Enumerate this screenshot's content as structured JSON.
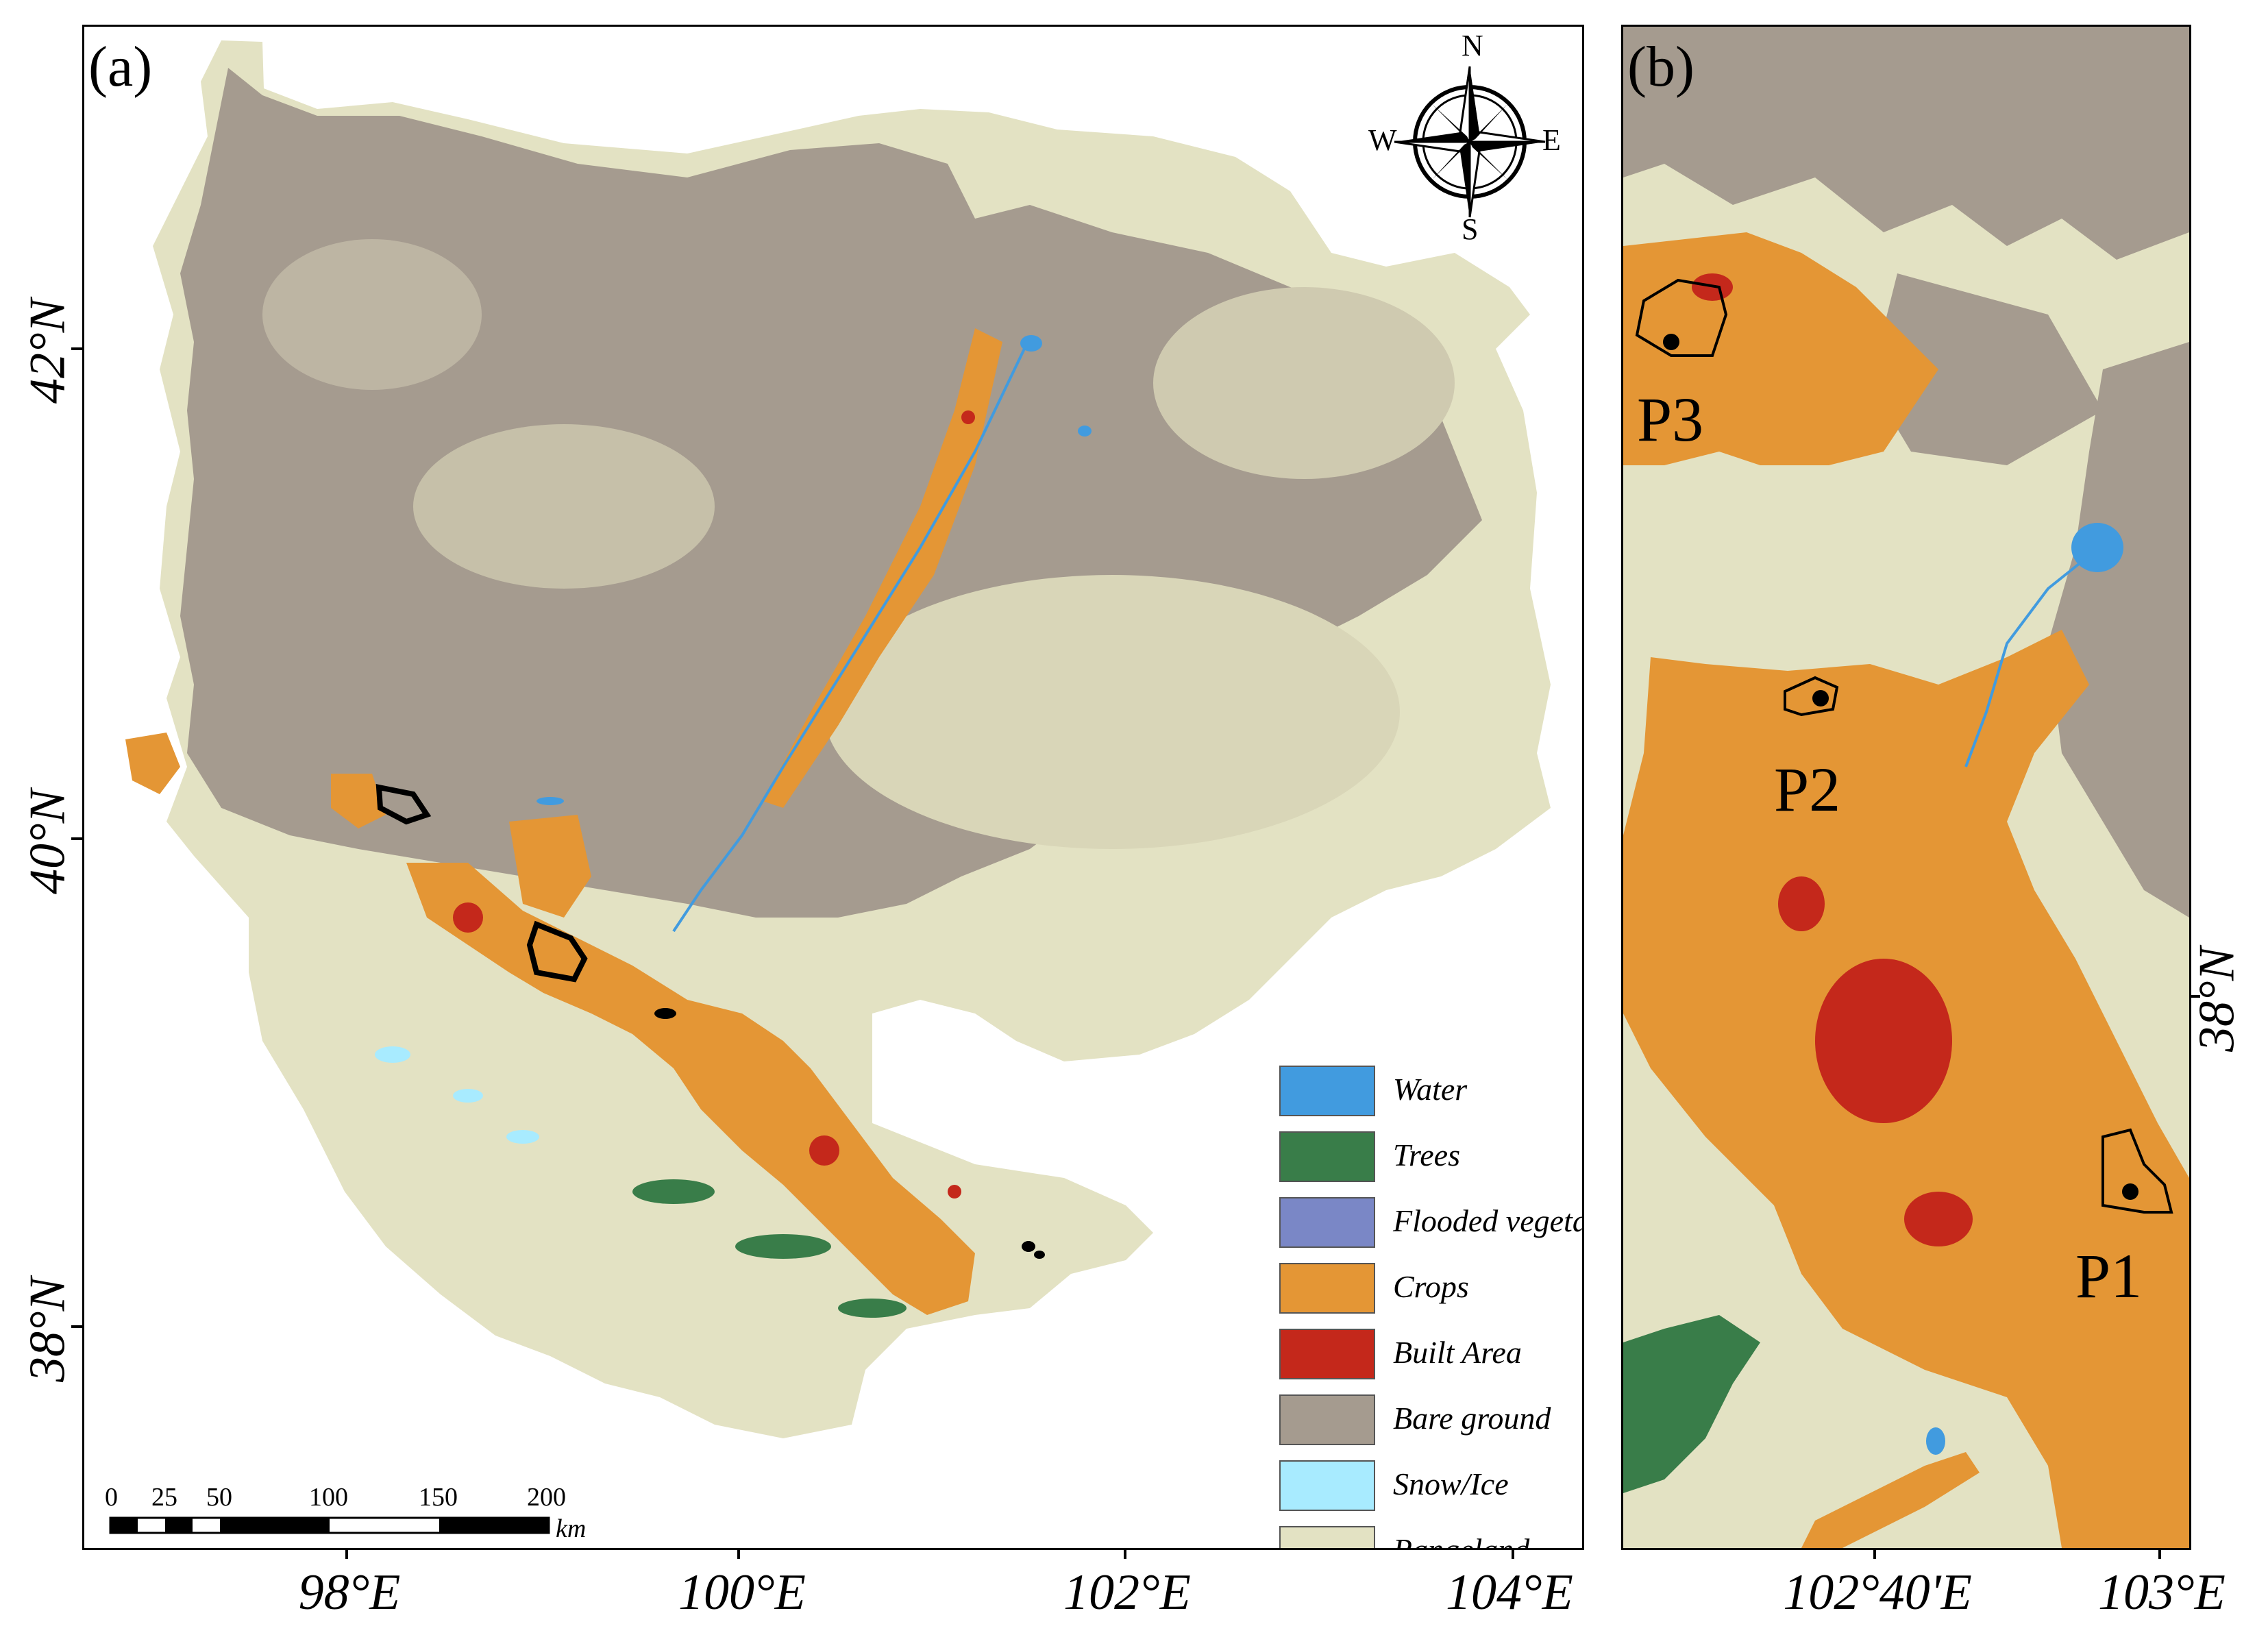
{
  "colors": {
    "water": "#419bdf",
    "trees": "#397d49",
    "flooded": "#7a87c6",
    "crops": "#e49635",
    "built": "#c4281b",
    "bare": "#a59b8f",
    "snow": "#a8ebff",
    "rangeland": "#e3e2c3"
  },
  "panel_a": {
    "label": "(a)",
    "lat_labels": [
      "42°N",
      "40°N",
      "38°N"
    ],
    "lon_labels": [
      "98°E",
      "100°E",
      "102°E",
      "104°E"
    ],
    "compass": {
      "icon": "compass-rose-icon",
      "n": "N",
      "s": "S",
      "e": "E",
      "w": "W"
    },
    "scalebar": {
      "ticks": [
        "0",
        "25",
        "50",
        "100",
        "150",
        "200"
      ],
      "unit": "km"
    },
    "legend": [
      {
        "label": "Water",
        "color": "#419bdf"
      },
      {
        "label": "Trees",
        "color": "#397d49"
      },
      {
        "label": "Flooded vegetation",
        "color": "#7a87c6"
      },
      {
        "label": "Crops",
        "color": "#e49635"
      },
      {
        "label": "Built Area",
        "color": "#c4281b"
      },
      {
        "label": "Bare ground",
        "color": "#a59b8f"
      },
      {
        "label": "Snow/Ice",
        "color": "#a8ebff"
      },
      {
        "label": "Rangeland",
        "color": "#e3e2c3"
      }
    ]
  },
  "panel_b": {
    "label": "(b)",
    "lat_labels": [
      "38°N"
    ],
    "lon_labels": [
      "102°40'E",
      "103°E"
    ],
    "points": [
      "P3",
      "P2",
      "P1"
    ]
  }
}
